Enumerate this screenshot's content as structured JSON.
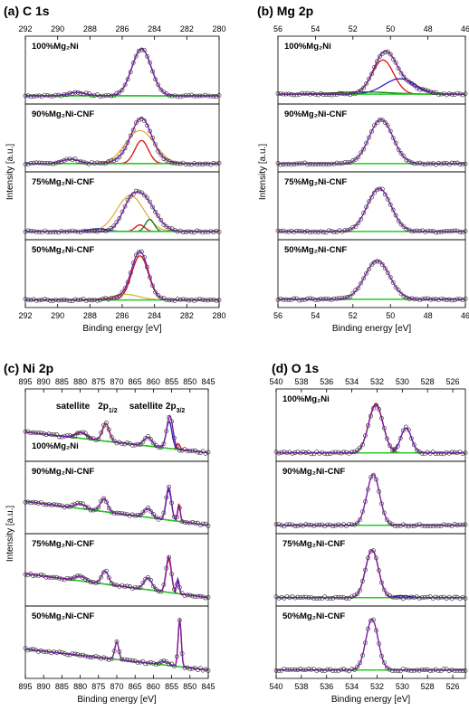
{
  "chart_data": [
    {
      "type": "line",
      "panel": "(a) C 1s",
      "xlabel": "Binding energy [eV]",
      "ylabel": "Intensity [a.u.]",
      "xlim": [
        292,
        280
      ],
      "xticks": [
        292,
        290,
        288,
        286,
        284,
        282,
        280
      ],
      "x_reversed": true,
      "peak_labels": [],
      "subplots": [
        {
          "label": "100%Mg₂Ni",
          "baseline": [
            0.05,
            0.05
          ],
          "data_peaks": [
            {
              "center": 284.8,
              "width": 1.0,
              "amp": 0.85
            },
            {
              "center": 288.8,
              "width": 0.9,
              "amp": 0.06
            }
          ],
          "components": [
            {
              "color": "#1f1fcc",
              "center": 288.8,
              "width": 0.9,
              "amp": 0.06
            },
            {
              "color": "#1f1fcc",
              "center": 284.8,
              "width": 1.0,
              "amp": 0.85
            }
          ],
          "points": true
        },
        {
          "label": "90%Mg₂Ni-CNF",
          "baseline": [
            0.05,
            0.05
          ],
          "data_peaks": [
            {
              "center": 284.8,
              "width": 0.95,
              "amp": 0.55
            },
            {
              "center": 284.9,
              "width": 1.5,
              "amp": 0.28
            },
            {
              "center": 289.2,
              "width": 0.9,
              "amp": 0.08
            }
          ],
          "components": [
            {
              "color": "#e0b040",
              "center": 284.9,
              "width": 1.5,
              "amp": 0.6
            },
            {
              "color": "#dd1111",
              "center": 284.8,
              "width": 0.7,
              "amp": 0.42
            },
            {
              "color": "#1f1fcc",
              "center": 289.2,
              "width": 0.9,
              "amp": 0.08
            }
          ],
          "points": true
        },
        {
          "label": "75%Mg₂Ni-CNF",
          "baseline": [
            0.05,
            0.05
          ],
          "data_peaks": [
            {
              "center": 284.8,
              "width": 1.3,
              "amp": 0.65
            },
            {
              "center": 285.6,
              "width": 0.8,
              "amp": 0.2
            }
          ],
          "components": [
            {
              "color": "#e0b040",
              "center": 285.5,
              "width": 1.4,
              "amp": 0.65
            },
            {
              "color": "#dd1111",
              "center": 284.9,
              "width": 0.5,
              "amp": 0.12
            },
            {
              "color": "#117711",
              "center": 284.3,
              "width": 0.45,
              "amp": 0.22
            },
            {
              "color": "#1f1fcc",
              "center": 287.5,
              "width": 1.0,
              "amp": 0.05
            }
          ],
          "points": true
        },
        {
          "label": "50%Mg₂Ni-CNF",
          "baseline": [
            0.04,
            0.04
          ],
          "data_peaks": [
            {
              "center": 284.9,
              "width": 0.85,
              "amp": 0.85
            },
            {
              "center": 285.8,
              "width": 1.4,
              "amp": 0.05
            }
          ],
          "components": [
            {
              "color": "#dd1111",
              "center": 284.9,
              "width": 0.85,
              "amp": 0.8
            },
            {
              "color": "#e0b040",
              "center": 285.8,
              "width": 1.4,
              "amp": 0.1
            }
          ],
          "points": true
        }
      ]
    },
    {
      "type": "line",
      "panel": "(b) Mg 2p",
      "xlabel": "Binding energy [eV]",
      "ylabel": "Intensity [a.u.]",
      "xlim": [
        56,
        46
      ],
      "xticks": [
        56,
        54,
        52,
        50,
        48,
        46
      ],
      "x_reversed": true,
      "peak_labels": [],
      "subplots": [
        {
          "label": "100%Mg₂Ni",
          "baseline": [
            0.08,
            0.08
          ],
          "data_peaks": [
            {
              "center": 50.3,
              "width": 1.0,
              "amp": 0.72
            },
            {
              "center": 49.2,
              "width": 1.3,
              "amp": 0.15
            }
          ],
          "components": [
            {
              "color": "#dd1111",
              "center": 50.4,
              "width": 0.95,
              "amp": 0.62
            },
            {
              "color": "#1f1fcc",
              "center": 49.5,
              "width": 1.4,
              "amp": 0.28
            },
            {
              "color": "#117711",
              "center": 51.5,
              "width": 2.5,
              "amp": 0.04
            }
          ],
          "points": true
        },
        {
          "label": "90%Mg₂Ni-CNF",
          "baseline": [
            0.05,
            0.05
          ],
          "data_peaks": [
            {
              "center": 50.5,
              "width": 1.05,
              "amp": 0.8
            }
          ],
          "components": [],
          "points": true
        },
        {
          "label": "75%Mg₂Ni-CNF",
          "baseline": [
            0.05,
            0.05
          ],
          "data_peaks": [
            {
              "center": 50.6,
              "width": 1.05,
              "amp": 0.78
            }
          ],
          "components": [],
          "points": true
        },
        {
          "label": "50%Mg₂Ni-CNF",
          "baseline": [
            0.05,
            0.05
          ],
          "data_peaks": [
            {
              "center": 50.7,
              "width": 1.1,
              "amp": 0.7
            }
          ],
          "components": [],
          "points": true
        }
      ]
    },
    {
      "type": "line",
      "panel": "(c) Ni 2p",
      "xlabel": "Binding energy [eV]",
      "ylabel": "Intensity [a.u.]",
      "xlim": [
        895,
        845
      ],
      "xticks": [
        895,
        890,
        885,
        880,
        875,
        870,
        865,
        860,
        855,
        850,
        845
      ],
      "x_reversed": true,
      "peak_labels": [
        {
          "text": "satellite",
          "x": 882,
          "subplot": 0
        },
        {
          "text": "2p",
          "sub": "1/2",
          "x": 872.5,
          "subplot": 0
        },
        {
          "text": "satellite",
          "x": 862,
          "subplot": 0
        },
        {
          "text": "2p",
          "sub": "3/2",
          "x": 854,
          "subplot": 0
        }
      ],
      "subplots": [
        {
          "label": "100%Mg₂Ni",
          "baseline": [
            0.4,
            0.05
          ],
          "data_peaks": [
            {
              "center": 855.5,
              "width": 1.4,
              "amp": 0.55
            },
            {
              "center": 861.5,
              "width": 1.8,
              "amp": 0.15
            },
            {
              "center": 873,
              "width": 1.6,
              "amp": 0.3
            },
            {
              "center": 879.5,
              "width": 2.5,
              "amp": 0.1
            }
          ],
          "components": [
            {
              "color": "#1f1fcc",
              "center": 855.7,
              "width": 1.3,
              "amp": 0.45
            },
            {
              "color": "#dd1111",
              "center": 853.2,
              "width": 0.8,
              "amp": 0.1
            },
            {
              "color": "#1f1fcc",
              "center": 861.5,
              "width": 1.8,
              "amp": 0.15
            },
            {
              "color": "#e0b040",
              "center": 873,
              "width": 1.6,
              "amp": 0.25
            },
            {
              "color": "#8b4513",
              "center": 880,
              "width": 2.5,
              "amp": 0.1
            }
          ],
          "points": true
        },
        {
          "label": "90%Mg₂Ni-CNF",
          "baseline": [
            0.45,
            0.05
          ],
          "data_peaks": [
            {
              "center": 855.8,
              "width": 1.2,
              "amp": 0.55
            },
            {
              "center": 853.0,
              "width": 0.6,
              "amp": 0.25
            },
            {
              "center": 861.5,
              "width": 1.8,
              "amp": 0.15
            },
            {
              "center": 873.5,
              "width": 1.6,
              "amp": 0.22
            },
            {
              "center": 880,
              "width": 2.5,
              "amp": 0.08
            }
          ],
          "components": [
            {
              "color": "#1f1fcc",
              "center": 855.8,
              "width": 1.2,
              "amp": 0.5
            },
            {
              "color": "#dd1111",
              "center": 853.0,
              "width": 0.6,
              "amp": 0.3
            },
            {
              "color": "#1f1fcc",
              "center": 861.5,
              "width": 1.8,
              "amp": 0.15
            },
            {
              "color": "#e0b040",
              "center": 873.5,
              "width": 1.6,
              "amp": 0.22
            },
            {
              "color": "#8b4513",
              "center": 880,
              "width": 2.5,
              "amp": 0.08
            }
          ],
          "points": true
        },
        {
          "label": "75%Mg₂Ni-CNF",
          "baseline": [
            0.45,
            0.05
          ],
          "data_peaks": [
            {
              "center": 855.8,
              "width": 1.2,
              "amp": 0.6
            },
            {
              "center": 853.3,
              "width": 0.6,
              "amp": 0.2
            },
            {
              "center": 861.5,
              "width": 1.8,
              "amp": 0.2
            },
            {
              "center": 873.2,
              "width": 1.6,
              "amp": 0.22
            },
            {
              "center": 880,
              "width": 2.5,
              "amp": 0.08
            }
          ],
          "components": [
            {
              "color": "#dd1111",
              "center": 855.8,
              "width": 1.2,
              "amp": 0.55
            },
            {
              "color": "#1f1fcc",
              "center": 853.3,
              "width": 0.6,
              "amp": 0.25
            },
            {
              "color": "#1f1fcc",
              "center": 861.5,
              "width": 1.8,
              "amp": 0.2
            },
            {
              "color": "#e0b040",
              "center": 873.2,
              "width": 1.6,
              "amp": 0.22
            },
            {
              "color": "#8b4513",
              "center": 880,
              "width": 2.5,
              "amp": 0.08
            }
          ],
          "points": true
        },
        {
          "label": "50%Mg₂Ni-CNF",
          "baseline": [
            0.4,
            0.05
          ],
          "data_peaks": [
            {
              "center": 852.8,
              "width": 0.7,
              "amp": 0.8
            },
            {
              "center": 870,
              "width": 0.9,
              "amp": 0.3
            },
            {
              "center": 857,
              "width": 2.0,
              "amp": 0.06
            }
          ],
          "components": [
            {
              "color": "#dd1111",
              "center": 852.8,
              "width": 0.7,
              "amp": 0.8
            },
            {
              "color": "#e0b040",
              "center": 870,
              "width": 0.9,
              "amp": 0.3
            },
            {
              "color": "#1f1fcc",
              "center": 857,
              "width": 2.0,
              "amp": 0.06
            }
          ],
          "points": true
        }
      ]
    },
    {
      "type": "line",
      "panel": "(d) O 1s",
      "xlabel": "Binding energy [eV]",
      "ylabel": "",
      "xlim": [
        540,
        525
      ],
      "xticks": [
        540,
        538,
        536,
        534,
        532,
        530,
        528,
        526
      ],
      "x_reversed": true,
      "peak_labels": [],
      "subplots": [
        {
          "label": "100%Mg₂Ni",
          "baseline": [
            0.05,
            0.05
          ],
          "data_peaks": [
            {
              "center": 532.1,
              "width": 0.95,
              "amp": 0.8
            },
            {
              "center": 529.7,
              "width": 0.7,
              "amp": 0.42
            }
          ],
          "components": [
            {
              "color": "#dd1111",
              "center": 532.1,
              "width": 0.95,
              "amp": 0.82
            },
            {
              "color": "#1f1fcc",
              "center": 529.7,
              "width": 0.7,
              "amp": 0.42
            }
          ],
          "points": true
        },
        {
          "label": "90%Mg₂Ni-CNF",
          "baseline": [
            0.05,
            0.05
          ],
          "data_peaks": [
            {
              "center": 532.3,
              "width": 0.85,
              "amp": 0.85
            }
          ],
          "components": [],
          "points": true
        },
        {
          "label": "75%Mg₂Ni-CNF",
          "baseline": [
            0.05,
            0.05
          ],
          "data_peaks": [
            {
              "center": 532.4,
              "width": 0.85,
              "amp": 0.8
            }
          ],
          "components": [
            {
              "color": "#dd1111",
              "center": 532.4,
              "width": 0.85,
              "amp": 0.8
            },
            {
              "color": "#1f1fcc",
              "center": 530.0,
              "width": 1.0,
              "amp": 0.03
            }
          ],
          "points": true
        },
        {
          "label": "50%Mg₂Ni-CNF",
          "baseline": [
            0.05,
            0.05
          ],
          "data_peaks": [
            {
              "center": 532.4,
              "width": 0.8,
              "amp": 0.85
            }
          ],
          "components": [],
          "points": true
        }
      ]
    }
  ],
  "colors": {
    "fit": "#7a1fa2",
    "baseline": "#22cc22",
    "points": "#222222"
  }
}
